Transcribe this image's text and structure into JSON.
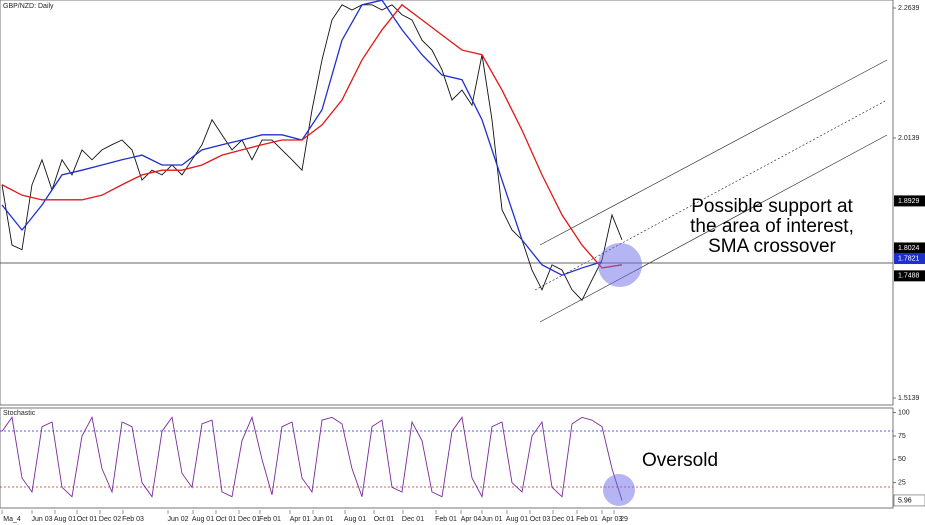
{
  "chart_data": [
    {
      "type": "line",
      "title": "GBP/NZD: Daily",
      "annotation": [
        "Possible support at",
        "the area of interest,",
        "SMA crossover"
      ],
      "ylim": [
        1.5004,
        2.2793
      ],
      "yticks": [
        2.2639,
        2.0139,
        1.5139
      ],
      "series": [
        {
          "color": "#111111",
          "values": [
            1.924,
            1.808,
            1.799,
            1.924,
            1.972,
            1.914,
            1.972,
            1.943,
            1.991,
            1.972,
            1.991,
            2.001,
            2.01,
            1.991,
            1.933,
            1.952,
            1.943,
            1.962,
            1.943,
            1.972,
            2.001,
            2.049,
            2.02,
            1.991,
            2.01,
            1.972,
            2.01,
            2.01,
            1.991,
            1.972,
            1.952,
            2.068,
            2.164,
            2.241,
            2.27,
            2.26,
            2.27,
            2.27,
            2.26,
            2.27,
            2.251,
            2.241,
            2.202,
            2.183,
            2.145,
            2.087,
            2.106,
            2.077,
            2.174,
            2.049,
            1.876,
            1.837,
            1.818,
            1.76,
            1.722,
            1.77,
            1.76,
            1.722,
            1.702,
            1.741,
            1.779,
            1.866,
            1.818
          ]
        },
        {
          "color": "#1f2fcf",
          "values": [
            1.885,
            1.837,
            1.885,
            1.943,
            1.952,
            1.962,
            1.972,
            1.981,
            1.962,
            1.962,
            1.991,
            2.001,
            2.01,
            2.02,
            2.02,
            2.01,
            2.068,
            2.202,
            2.27,
            2.279,
            2.222,
            2.174,
            2.135,
            2.126,
            2.049,
            1.933,
            1.818,
            1.77,
            1.75,
            1.764,
            1.776
          ]
        },
        {
          "color": "#e01818",
          "values": [
            1.924,
            1.904,
            1.895,
            1.895,
            1.895,
            1.904,
            1.924,
            1.943,
            1.952,
            1.952,
            1.962,
            1.981,
            1.991,
            2.001,
            2.01,
            2.01,
            2.039,
            2.087,
            2.164,
            2.222,
            2.27,
            2.241,
            2.212,
            2.183,
            2.174,
            2.106,
            2.029,
            1.943,
            1.866,
            1.808,
            1.764,
            1.77
          ]
        }
      ],
      "price_tags": [
        {
          "value": 1.8929,
          "color": "#000000"
        },
        {
          "value": 1.8024,
          "color": "#000000"
        },
        {
          "value": 1.7821,
          "color": "#1f2fcf"
        },
        {
          "value": 1.7488,
          "color": "#000000"
        }
      ]
    },
    {
      "type": "line",
      "title": "Stochastic",
      "annotation": [
        "Oversold"
      ],
      "ylim": [
        0,
        105
      ],
      "yticks": [
        100,
        75,
        50,
        25
      ],
      "series": [
        {
          "color": "#7a2a9a",
          "values": [
            80,
            95,
            30,
            15,
            85,
            90,
            20,
            10,
            75,
            95,
            40,
            15,
            90,
            85,
            25,
            10,
            80,
            95,
            35,
            20,
            88,
            92,
            15,
            10,
            70,
            95,
            50,
            12,
            85,
            90,
            30,
            15,
            92,
            95,
            88,
            40,
            10,
            85,
            92,
            20,
            15,
            90,
            70,
            15,
            10,
            80,
            95,
            30,
            10,
            85,
            90,
            25,
            15,
            75,
            90,
            20,
            10,
            88,
            95,
            92,
            85,
            40,
            5.96
          ]
        }
      ],
      "price_tags": [
        {
          "value": 5.96,
          "color": "#ffffff"
        }
      ],
      "x_tick_labels": [
        "Ma_4",
        "Jun 03",
        "Aug 01",
        "Oct 01",
        "Dec 02",
        "Feb 03",
        "Jun 02",
        "Aug 01",
        "Oct 01",
        "Dec 01",
        "Feb 01",
        "Apr 01",
        "Jun 01",
        "Aug 01",
        "Oct 01",
        "Dec 01",
        "Feb 01",
        "Apr 04",
        "Jun 01",
        "Aug 01",
        "Oct 03",
        "Dec 01",
        "Feb 01",
        "Apr 03",
        "29"
      ]
    }
  ]
}
